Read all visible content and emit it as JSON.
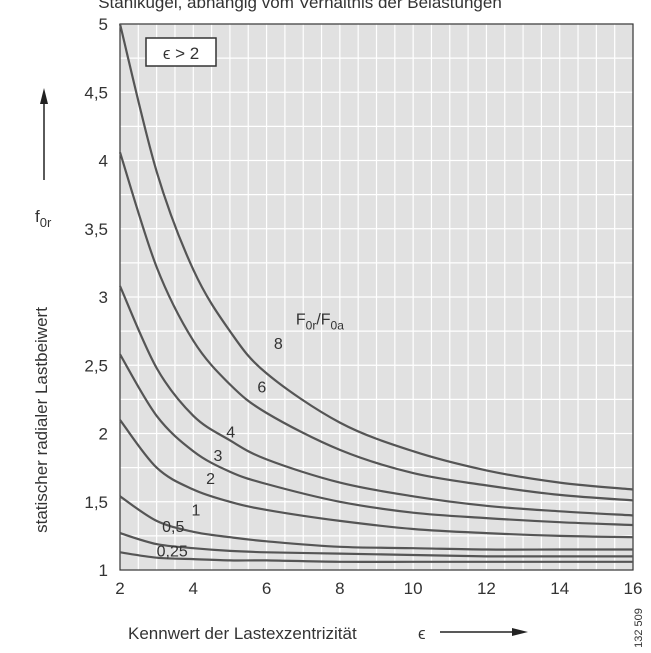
{
  "header_text": "Stahlkugel, abhängig vom Verhältnis der Belastungen",
  "chart_data": {
    "type": "line",
    "title": "",
    "xlabel": "Kennwert der Lastexzentrizität",
    "xlabel_symbol": "ϵ",
    "ylabel": "statischer radialer Lastbeiwert",
    "ysymbol_main": "f",
    "ysymbol_sub": "0r",
    "xlim": [
      2,
      16
    ],
    "ylim": [
      1,
      5
    ],
    "x_ticks": [
      2,
      4,
      6,
      8,
      10,
      12,
      14,
      16
    ],
    "y_ticks": [
      "1",
      "1,5",
      "2",
      "2,5",
      "3",
      "3,5",
      "4",
      "4,5",
      "5"
    ],
    "y_tick_values": [
      1,
      1.5,
      2,
      2.5,
      3,
      3.5,
      4,
      4.5,
      5
    ],
    "grid": true,
    "condition_box": "ϵ > 2",
    "legend_title": {
      "main": "F",
      "sub1": "0r",
      "mid": "/F",
      "sub2": "0a"
    },
    "x": [
      2,
      3,
      4,
      5,
      6,
      8,
      10,
      12,
      14,
      16
    ],
    "series": [
      {
        "name": "0,25",
        "values": [
          1.13,
          1.09,
          1.08,
          1.07,
          1.07,
          1.06,
          1.06,
          1.06,
          1.06,
          1.06
        ]
      },
      {
        "name": "0,5",
        "values": [
          1.27,
          1.19,
          1.16,
          1.14,
          1.13,
          1.12,
          1.11,
          1.1,
          1.1,
          1.1
        ]
      },
      {
        "name": "1",
        "values": [
          1.54,
          1.36,
          1.28,
          1.24,
          1.21,
          1.17,
          1.16,
          1.15,
          1.15,
          1.15
        ]
      },
      {
        "name": "2",
        "values": [
          2.1,
          1.75,
          1.59,
          1.5,
          1.44,
          1.36,
          1.3,
          1.27,
          1.25,
          1.24
        ]
      },
      {
        "name": "3",
        "values": [
          2.58,
          2.13,
          1.87,
          1.72,
          1.63,
          1.5,
          1.42,
          1.38,
          1.35,
          1.33
        ]
      },
      {
        "name": "4",
        "values": [
          3.08,
          2.48,
          2.13,
          1.95,
          1.81,
          1.64,
          1.54,
          1.47,
          1.43,
          1.4
        ]
      },
      {
        "name": "6",
        "values": [
          4.06,
          3.22,
          2.68,
          2.36,
          2.15,
          1.88,
          1.71,
          1.62,
          1.55,
          1.51
        ]
      },
      {
        "name": "8",
        "values": [
          5.0,
          3.92,
          3.2,
          2.75,
          2.44,
          2.08,
          1.87,
          1.73,
          1.64,
          1.59
        ]
      }
    ],
    "curve_labels": [
      {
        "text": "8",
        "x": 6.2,
        "y": 2.62
      },
      {
        "text": "6",
        "x": 5.75,
        "y": 2.3
      },
      {
        "text": "4",
        "x": 4.9,
        "y": 1.97
      },
      {
        "text": "3",
        "x": 4.55,
        "y": 1.8
      },
      {
        "text": "2",
        "x": 4.35,
        "y": 1.63
      },
      {
        "text": "1",
        "x": 3.95,
        "y": 1.4
      },
      {
        "text": "0,5",
        "x": 3.15,
        "y": 1.28
      },
      {
        "text": "0,25",
        "x": 3.0,
        "y": 1.1
      }
    ],
    "legend_position": {
      "x": 6.8,
      "y": 2.8
    }
  },
  "figure_number": "132 509",
  "colors": {
    "plot_background": "#e1e1e1",
    "grid": "#ffffff",
    "curve": "#555555",
    "frame": "#333333"
  }
}
